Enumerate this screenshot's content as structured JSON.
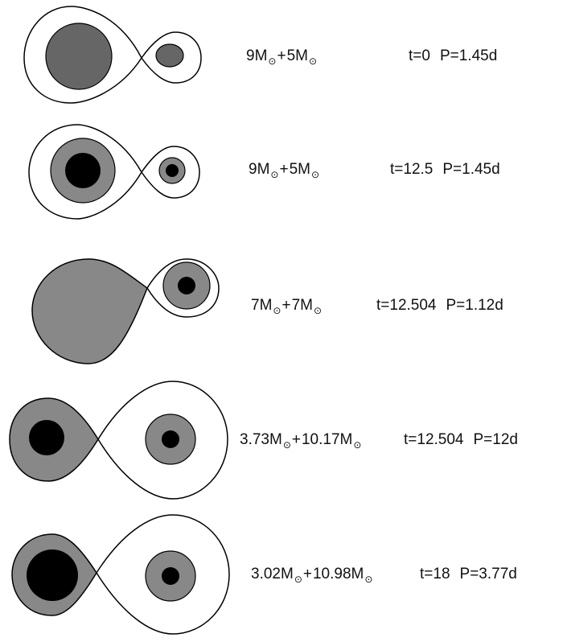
{
  "sun_symbol": "⊙",
  "mass_unit": "M",
  "stages": [
    {
      "m1": "9",
      "m2": "5",
      "t": "t=0",
      "p": "P=1.45d",
      "primary": {
        "fill": "#666666",
        "core": false,
        "roche_filled": false
      },
      "secondary": {
        "fill": "#666666",
        "core": false
      }
    },
    {
      "m1": "9",
      "m2": "5",
      "t": "t=12.5",
      "p": "P=1.45d",
      "primary": {
        "fill": "#888888",
        "core": true,
        "roche_filled": false
      },
      "secondary": {
        "fill": "#888888",
        "core": true
      }
    },
    {
      "m1": "7",
      "m2": "7",
      "t": "t=12.504",
      "p": "P=1.12d",
      "primary": {
        "fill": "#888888",
        "core": false,
        "roche_filled": true
      },
      "secondary": {
        "fill": "#888888",
        "core": true
      }
    },
    {
      "m1": "3.73",
      "m2": "10.17",
      "t": "t=12.504",
      "p": "P=12d",
      "primary": {
        "fill": "#888888",
        "core": true,
        "roche_filled": true
      },
      "secondary": {
        "fill": "#888888",
        "core": true
      }
    },
    {
      "m1": "3.02",
      "m2": "10.98",
      "t": "t=18",
      "p": "P=3.77d",
      "primary": {
        "fill": "#888888",
        "core": true,
        "roche_filled": true
      },
      "secondary": {
        "fill": "#888888",
        "core": true
      }
    }
  ],
  "colors": {
    "outline": "#000000",
    "envelope": "#888888",
    "core": "#000000",
    "background": "#ffffff"
  }
}
